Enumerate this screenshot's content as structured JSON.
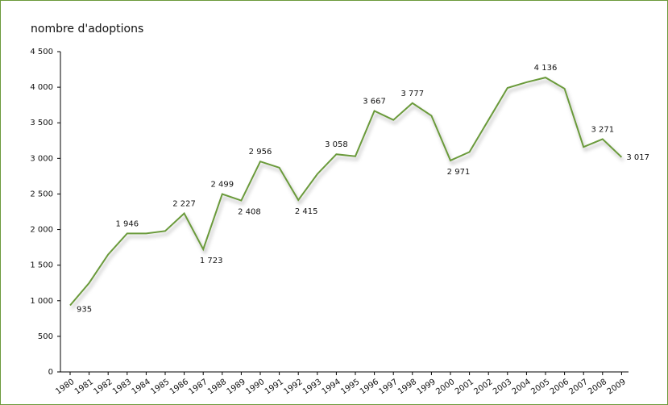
{
  "chart_data": {
    "type": "line",
    "title": "nombre d'adoptions",
    "categories": [
      "1980",
      "1981",
      "1982",
      "1983",
      "1984",
      "1985",
      "1986",
      "1987",
      "1988",
      "1989",
      "1990",
      "1991",
      "1992",
      "1993",
      "1994",
      "1995",
      "1996",
      "1997",
      "1998",
      "1999",
      "2000",
      "2001",
      "2002",
      "2003",
      "2004",
      "2005",
      "2006",
      "2007",
      "2008",
      "2009"
    ],
    "series": [
      {
        "color": "#6b9a3b",
        "values": [
          935,
          1250,
          1650,
          1946,
          1946,
          1980,
          2227,
          1723,
          2499,
          2408,
          2956,
          2870,
          2415,
          2780,
          3058,
          3030,
          3667,
          3540,
          3777,
          3600,
          2971,
          3090,
          3540,
          3990,
          4070,
          4136,
          3980,
          3160,
          3271,
          3017
        ],
        "value_labels": [
          "935",
          null,
          null,
          "1 946",
          null,
          null,
          "2 227",
          "1 723",
          "2 499",
          "2 408",
          "2 956",
          null,
          "2 415",
          null,
          "3 058",
          null,
          "3 667",
          null,
          "3 777",
          null,
          "2 971",
          null,
          null,
          null,
          null,
          "4 136",
          null,
          null,
          "3 271",
          "3 017"
        ]
      }
    ],
    "ylim": [
      0,
      4500
    ],
    "yticks": [
      0,
      500,
      {
        "value": 1000,
        "label": "1 000"
      },
      {
        "value": 1500,
        "label": "1 500"
      },
      {
        "value": 2000,
        "label": "2 000"
      },
      {
        "value": 2500,
        "label": "2 500"
      },
      {
        "value": 3000,
        "label": "3 000"
      },
      {
        "value": 3500,
        "label": "3 500"
      },
      {
        "value": 4000,
        "label": "4 000"
      },
      {
        "value": 4500,
        "label": "4 500"
      }
    ]
  }
}
